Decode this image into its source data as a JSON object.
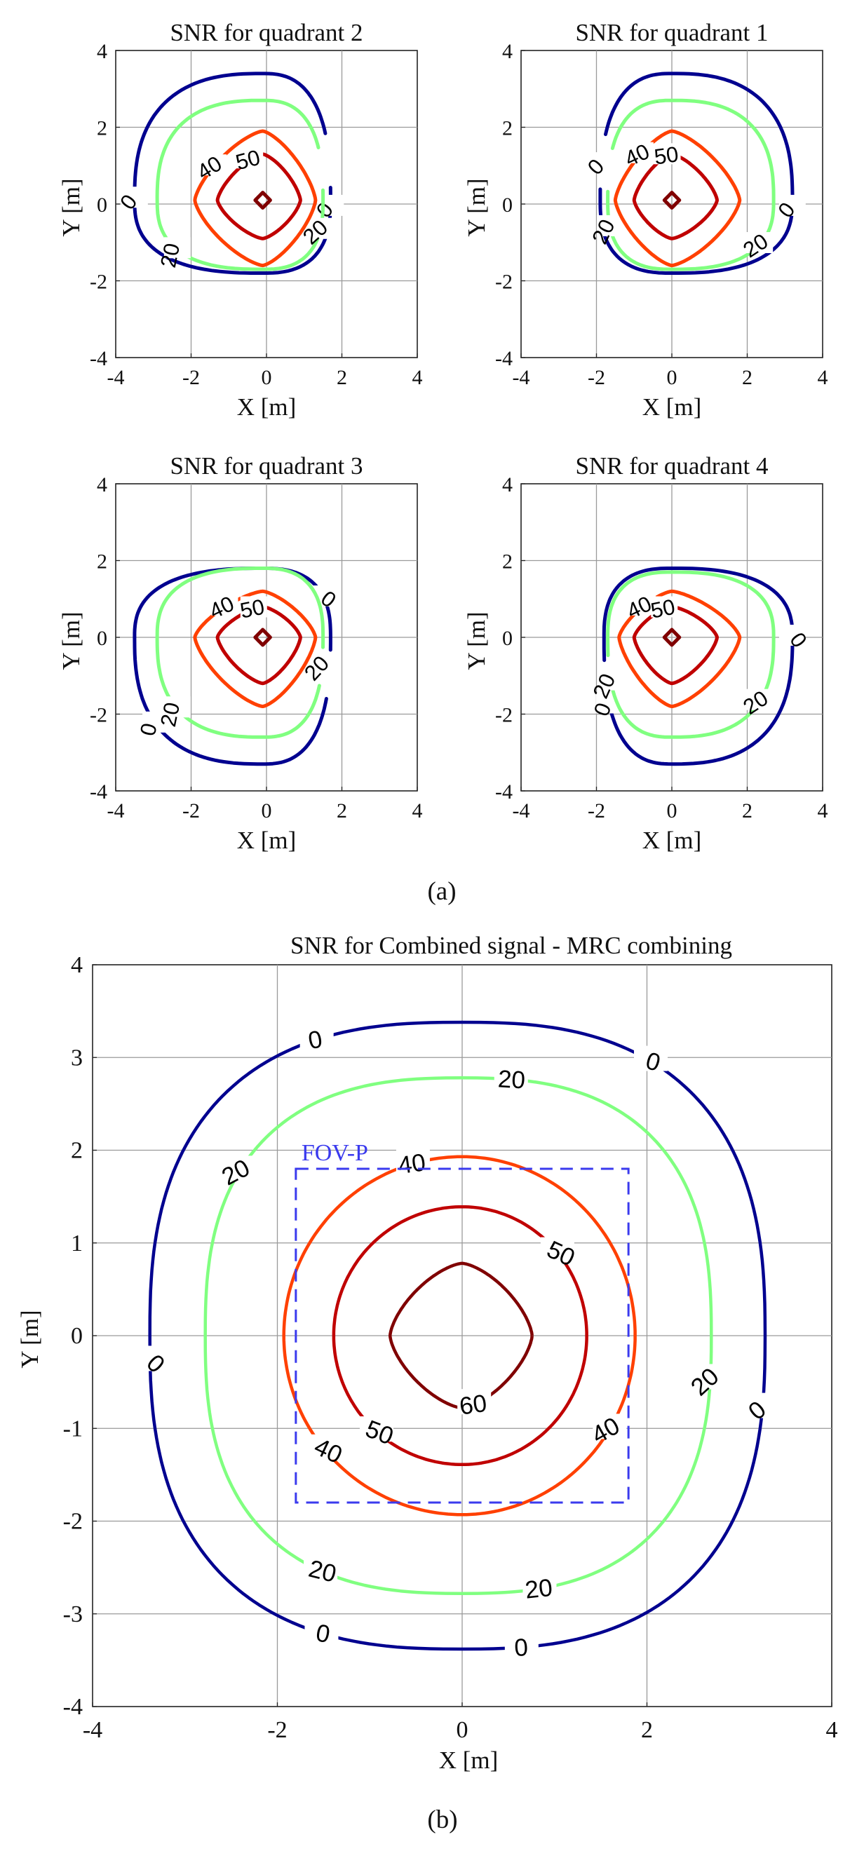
{
  "figure_captions": {
    "a": "(a)",
    "b": "(b)"
  },
  "chart_data": [
    {
      "type": "contour",
      "panel": "quadrant-2",
      "title": "SNR for quadrant 2",
      "xlabel": "X [m]",
      "ylabel": "Y [m]",
      "xlim": [
        -4,
        4
      ],
      "ylim": [
        -4,
        4
      ],
      "xticks": [
        -4,
        -2,
        0,
        2,
        4
      ],
      "yticks": [
        -4,
        -2,
        0,
        2,
        4
      ],
      "grid": true,
      "center": [
        -0.1,
        0.1
      ],
      "levels": [
        {
          "level": 0,
          "color": "#00008f",
          "extents": {
            "left": 3.4,
            "right": 1.8,
            "top": 3.3,
            "bottom": 1.9
          },
          "open": true,
          "labels": [
            "0",
            "0"
          ]
        },
        {
          "level": 20,
          "color": "#80ff80",
          "extents": {
            "left": 2.8,
            "right": 1.6,
            "top": 2.6,
            "bottom": 1.8
          },
          "open": true,
          "labels": [
            "20",
            "20"
          ]
        },
        {
          "level": 40,
          "color": "#ff4000",
          "extents": {
            "left": 1.8,
            "right": 1.4,
            "top": 1.8,
            "bottom": 1.7
          },
          "open": false,
          "labels": [
            "40"
          ]
        },
        {
          "level": 50,
          "color": "#c00000",
          "extents": {
            "left": 1.2,
            "right": 1.0,
            "top": 1.2,
            "bottom": 1.0
          },
          "open": false,
          "labels": [
            "50"
          ]
        },
        {
          "level": 60,
          "color": "#800000",
          "extents": {
            "left": 0.2,
            "right": 0.2,
            "top": 0.2,
            "bottom": 0.2
          },
          "open": false,
          "labels": []
        }
      ]
    },
    {
      "type": "contour",
      "panel": "quadrant-1",
      "title": "SNR for quadrant 1",
      "xlabel": "X [m]",
      "ylabel": "Y [m]",
      "xlim": [
        -4,
        4
      ],
      "ylim": [
        -4,
        4
      ],
      "xticks": [
        -4,
        -2,
        0,
        2,
        4
      ],
      "yticks": [
        -4,
        -2,
        0,
        2,
        4
      ],
      "grid": true,
      "center": [
        0.0,
        0.1
      ],
      "levels": [
        {
          "level": 0,
          "color": "#00008f",
          "extents": {
            "left": 1.9,
            "right": 3.2,
            "top": 3.3,
            "bottom": 1.9
          },
          "open": true,
          "labels": [
            "0",
            "0"
          ]
        },
        {
          "level": 20,
          "color": "#80ff80",
          "extents": {
            "left": 1.7,
            "right": 2.7,
            "top": 2.6,
            "bottom": 1.8
          },
          "open": true,
          "labels": [
            "20",
            "20"
          ]
        },
        {
          "level": 40,
          "color": "#ff4000",
          "extents": {
            "left": 1.5,
            "right": 1.8,
            "top": 1.8,
            "bottom": 1.7
          },
          "open": false,
          "labels": [
            "40"
          ]
        },
        {
          "level": 50,
          "color": "#c00000",
          "extents": {
            "left": 1.0,
            "right": 1.2,
            "top": 1.2,
            "bottom": 1.0
          },
          "open": false,
          "labels": [
            "50"
          ]
        },
        {
          "level": 60,
          "color": "#800000",
          "extents": {
            "left": 0.2,
            "right": 0.2,
            "top": 0.2,
            "bottom": 0.2
          },
          "open": false,
          "labels": []
        }
      ]
    },
    {
      "type": "contour",
      "panel": "quadrant-3",
      "title": "SNR for quadrant 3",
      "xlabel": "X [m]",
      "ylabel": "Y [m]",
      "xlim": [
        -4,
        4
      ],
      "ylim": [
        -4,
        4
      ],
      "xticks": [
        -4,
        -2,
        0,
        2,
        4
      ],
      "yticks": [
        -4,
        -2,
        0,
        2,
        4
      ],
      "grid": true,
      "center": [
        -0.1,
        0.0
      ],
      "levels": [
        {
          "level": 0,
          "color": "#00008f",
          "extents": {
            "left": 3.4,
            "right": 1.8,
            "top": 1.8,
            "bottom": 3.3
          },
          "open": true,
          "labels": [
            "0",
            "0"
          ]
        },
        {
          "level": 20,
          "color": "#80ff80",
          "extents": {
            "left": 2.8,
            "right": 1.6,
            "top": 1.8,
            "bottom": 2.6
          },
          "open": true,
          "labels": [
            "20",
            "20"
          ]
        },
        {
          "level": 40,
          "color": "#ff4000",
          "extents": {
            "left": 1.8,
            "right": 1.4,
            "top": 1.2,
            "bottom": 1.8
          },
          "open": false,
          "labels": [
            "40"
          ]
        },
        {
          "level": 50,
          "color": "#c00000",
          "extents": {
            "left": 1.2,
            "right": 1.0,
            "top": 0.8,
            "bottom": 1.2
          },
          "open": false,
          "labels": [
            "50"
          ]
        },
        {
          "level": 60,
          "color": "#800000",
          "extents": {
            "left": 0.2,
            "right": 0.2,
            "top": 0.2,
            "bottom": 0.2
          },
          "open": false,
          "labels": []
        }
      ]
    },
    {
      "type": "contour",
      "panel": "quadrant-4",
      "title": "SNR for quadrant 4",
      "xlabel": "X [m]",
      "ylabel": "Y [m]",
      "xlim": [
        -4,
        4
      ],
      "ylim": [
        -4,
        4
      ],
      "xticks": [
        -4,
        -2,
        0,
        2,
        4
      ],
      "yticks": [
        -4,
        -2,
        0,
        2,
        4
      ],
      "grid": true,
      "center": [
        0.0,
        0.0
      ],
      "levels": [
        {
          "level": 0,
          "color": "#00008f",
          "extents": {
            "left": 1.8,
            "right": 3.2,
            "top": 1.8,
            "bottom": 3.3
          },
          "open": true,
          "labels": [
            "0",
            "0"
          ]
        },
        {
          "level": 20,
          "color": "#80ff80",
          "extents": {
            "left": 1.7,
            "right": 2.7,
            "top": 1.7,
            "bottom": 2.6
          },
          "open": true,
          "labels": [
            "20",
            "20"
          ]
        },
        {
          "level": 40,
          "color": "#ff4000",
          "extents": {
            "left": 1.4,
            "right": 1.8,
            "top": 1.2,
            "bottom": 1.8
          },
          "open": false,
          "labels": [
            "40"
          ]
        },
        {
          "level": 50,
          "color": "#c00000",
          "extents": {
            "left": 1.0,
            "right": 1.2,
            "top": 0.8,
            "bottom": 1.2
          },
          "open": false,
          "labels": [
            "50"
          ]
        },
        {
          "level": 60,
          "color": "#800000",
          "extents": {
            "left": 0.2,
            "right": 0.2,
            "top": 0.2,
            "bottom": 0.2
          },
          "open": false,
          "labels": []
        }
      ]
    },
    {
      "type": "contour",
      "panel": "combined",
      "title": "SNR for Combined signal - MRC combining",
      "xlabel": "X [m]",
      "ylabel": "Y [m]",
      "xlim": [
        -4,
        4
      ],
      "ylim": [
        -4,
        4
      ],
      "xticks": [
        -4,
        -2,
        0,
        2,
        4
      ],
      "yticks": [
        -4,
        -3,
        -2,
        -1,
        0,
        1,
        2,
        3,
        4
      ],
      "grid": true,
      "center": [
        0.0,
        0.0
      ],
      "levels": [
        {
          "level": 0,
          "color": "#00008f",
          "radius": 3.38,
          "labels": [
            "0",
            "0",
            "0",
            "0",
            "0",
            "0"
          ]
        },
        {
          "level": 20,
          "color": "#80ff80",
          "radius": 2.78,
          "labels": [
            "20",
            "20",
            "20",
            "20",
            "20"
          ]
        },
        {
          "level": 40,
          "color": "#ff4000",
          "radius": 1.93,
          "labels": [
            "40",
            "40",
            "40"
          ]
        },
        {
          "level": 50,
          "color": "#c00000",
          "radius": 1.39,
          "labels": [
            "50",
            "50"
          ]
        },
        {
          "level": 60,
          "color": "#800000",
          "radius": 0.78,
          "labels": [
            "60"
          ]
        }
      ],
      "fov_box": {
        "label": "FOV-P",
        "x": [
          -1.8,
          1.8
        ],
        "y": [
          -1.8,
          1.8
        ],
        "color": "#3a3aee"
      }
    }
  ]
}
